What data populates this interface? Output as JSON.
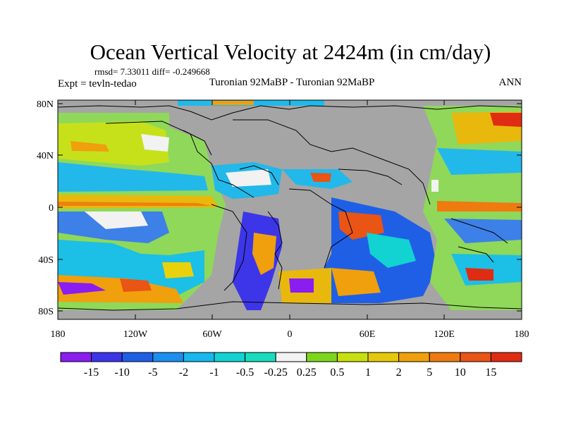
{
  "title": "Ocean Vertical Velocity at 2424m (in cm/day)",
  "stats_line": "rmsd= 7.33011 diff= -0.249668",
  "expt_line": "Expt = tevln-tedao",
  "comparison_line": "Turonian  92MaBP - Turonian  92MaBP",
  "season": "ANN",
  "map": {
    "y_ticks": [
      "80N",
      "40N",
      "0",
      "40S",
      "80S"
    ],
    "x_ticks": [
      "180",
      "120W",
      "60W",
      "0",
      "60E",
      "120E",
      "180"
    ],
    "land_color": "#a5a5a5",
    "outline_color": "#000000"
  },
  "colorbar": {
    "colors": [
      "#8a1df0",
      "#3c36e8",
      "#1f5fe6",
      "#1a8ff0",
      "#16b8ef",
      "#12d2d2",
      "#18dcbe",
      "#f2f2f2",
      "#7ed61c",
      "#c8e00e",
      "#e6c80a",
      "#f0a00c",
      "#ee7a10",
      "#ea5414",
      "#e02c12"
    ],
    "labels": [
      "-15",
      "-10",
      "-5",
      "-2",
      "-1",
      "-0.5",
      "-0.25",
      "0.25",
      "0.5",
      "1",
      "2",
      "5",
      "10",
      "15"
    ]
  }
}
